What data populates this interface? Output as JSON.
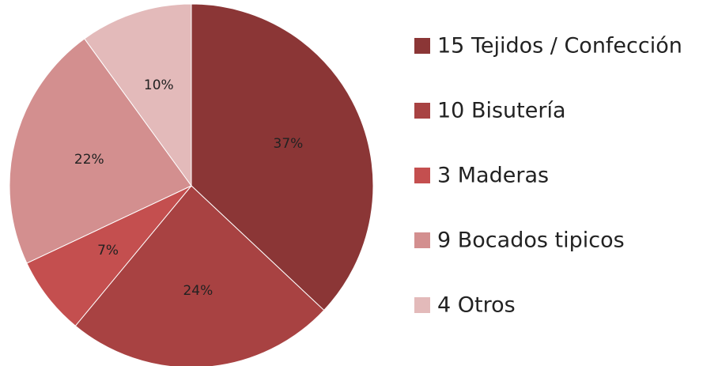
{
  "chart_data": {
    "type": "pie",
    "categories": [
      "15 Tejidos / Confección",
      "10 Bisutería",
      "3 Maderas",
      "9 Bocados tipicos",
      "4 Otros"
    ],
    "values": [
      37,
      24,
      7,
      22,
      10
    ],
    "value_labels": [
      "37%",
      "24%",
      "7%",
      "22%",
      "10%"
    ],
    "colors": [
      "#8b3636",
      "#a84242",
      "#c44f4f",
      "#d38f8f",
      "#e3baba"
    ],
    "legend": "right"
  }
}
